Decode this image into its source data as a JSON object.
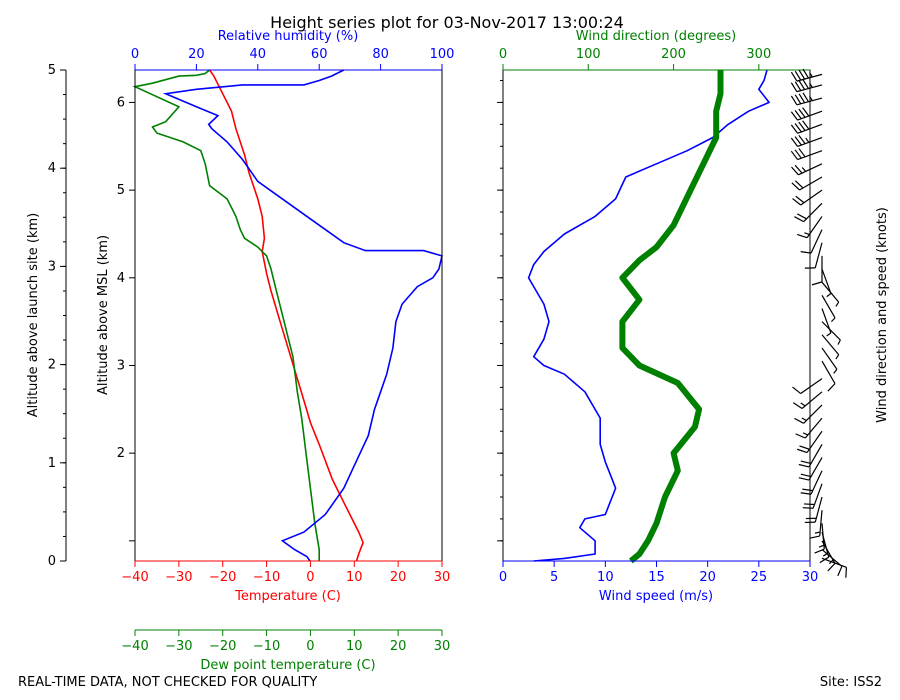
{
  "title": "Height series plot for 03-Nov-2017 13:00:24",
  "footer": {
    "left": "REAL-TIME DATA, NOT CHECKED FOR QUALITY",
    "right": "Site: ISS2"
  },
  "colors": {
    "temperature": "#ff0000",
    "dewpoint": "#008000",
    "humidity": "#0000ff",
    "wind_speed": "#0000ff",
    "wind_direction": "#008000",
    "axis": "#000000"
  },
  "chart_data": [
    {
      "type": "line",
      "panel": "thermodynamic",
      "left_axis": {
        "label": "Altitude above launch site (km)",
        "range": [
          0,
          5
        ],
        "ticks": [
          0,
          1,
          2,
          3,
          4,
          5
        ]
      },
      "y_axis": {
        "label": "Altitude above MSL (km)",
        "range": [
          0.77,
          6.37
        ],
        "ticks": [
          1,
          2,
          3,
          4,
          5,
          6
        ],
        "tick_labels": [
          "",
          "2",
          "3",
          "4",
          "5",
          "6"
        ]
      },
      "x_bottom": {
        "label": "Temperature (C)",
        "range": [
          -40,
          30
        ],
        "ticks": [
          -40,
          -30,
          -20,
          -10,
          0,
          10,
          20,
          30
        ]
      },
      "x_bottom2": {
        "label": "Dew point temperature (C)",
        "range": [
          -40,
          30
        ],
        "ticks": [
          -40,
          -30,
          -20,
          -10,
          0,
          10,
          20,
          30
        ]
      },
      "x_top": {
        "label": "Relative humidity (%)",
        "range": [
          0,
          100
        ],
        "ticks": [
          0,
          20,
          40,
          60,
          80,
          100
        ]
      },
      "series": [
        {
          "name": "Temperature",
          "axis": "temperature",
          "color": "#ff0000",
          "points": [
            [
              10.5,
              0.77
            ],
            [
              11,
              0.85
            ],
            [
              12,
              0.98
            ],
            [
              11,
              1.1
            ],
            [
              8,
              1.4
            ],
            [
              5,
              1.7
            ],
            [
              2,
              2.1
            ],
            [
              0,
              2.35
            ],
            [
              -1.5,
              2.6
            ],
            [
              -3,
              2.85
            ],
            [
              -4.5,
              3.1
            ],
            [
              -6,
              3.35
            ],
            [
              -7.5,
              3.6
            ],
            [
              -9,
              3.85
            ],
            [
              -10,
              4.05
            ],
            [
              -11,
              4.3
            ],
            [
              -10.5,
              4.45
            ],
            [
              -11,
              4.7
            ],
            [
              -12,
              4.9
            ],
            [
              -14,
              5.2
            ],
            [
              -15,
              5.4
            ],
            [
              -17,
              5.7
            ],
            [
              -18,
              5.9
            ],
            [
              -20,
              6.1
            ],
            [
              -22,
              6.3
            ],
            [
              -23,
              6.37
            ]
          ]
        },
        {
          "name": "Dew point",
          "axis": "dewpoint",
          "color": "#008000",
          "points": [
            [
              2,
              0.77
            ],
            [
              2,
              0.9
            ],
            [
              1,
              1.2
            ],
            [
              0,
              1.6
            ],
            [
              -1,
              2.0
            ],
            [
              -2,
              2.4
            ],
            [
              -3,
              2.7
            ],
            [
              -3.5,
              2.9
            ],
            [
              -4,
              3.1
            ],
            [
              -5,
              3.3
            ],
            [
              -6,
              3.5
            ],
            [
              -7,
              3.7
            ],
            [
              -8,
              3.9
            ],
            [
              -9,
              4.1
            ],
            [
              -10,
              4.25
            ],
            [
              -12,
              4.35
            ],
            [
              -15,
              4.45
            ],
            [
              -16,
              4.55
            ],
            [
              -17,
              4.7
            ],
            [
              -19,
              4.9
            ],
            [
              -23,
              5.05
            ],
            [
              -24,
              5.3
            ],
            [
              -25,
              5.45
            ],
            [
              -29,
              5.55
            ],
            [
              -35,
              5.65
            ],
            [
              -36,
              5.72
            ],
            [
              -33,
              5.78
            ],
            [
              -30,
              5.95
            ],
            [
              -40,
              6.18
            ],
            [
              -36,
              6.22
            ],
            [
              -30,
              6.3
            ],
            [
              -26,
              6.31
            ],
            [
              -24,
              6.33
            ],
            [
              -23,
              6.37
            ]
          ]
        },
        {
          "name": "Relative humidity",
          "axis": "humidity",
          "color": "#0000ff",
          "points": [
            [
              57,
              0.77
            ],
            [
              56,
              0.82
            ],
            [
              52,
              0.9
            ],
            [
              48,
              1.0
            ],
            [
              55,
              1.1
            ],
            [
              62,
              1.3
            ],
            [
              68,
              1.6
            ],
            [
              72,
              1.9
            ],
            [
              76,
              2.2
            ],
            [
              78,
              2.5
            ],
            [
              80,
              2.7
            ],
            [
              82,
              2.9
            ],
            [
              84,
              3.2
            ],
            [
              85,
              3.5
            ],
            [
              87,
              3.7
            ],
            [
              92,
              3.9
            ],
            [
              97,
              4.0
            ],
            [
              99,
              4.1
            ],
            [
              100,
              4.25
            ],
            [
              94,
              4.31
            ],
            [
              75,
              4.31
            ],
            [
              68,
              4.4
            ],
            [
              60,
              4.6
            ],
            [
              50,
              4.85
            ],
            [
              40,
              5.1
            ],
            [
              35,
              5.35
            ],
            [
              30,
              5.55
            ],
            [
              25,
              5.7
            ],
            [
              24,
              5.75
            ],
            [
              27,
              5.85
            ],
            [
              20,
              5.95
            ],
            [
              10,
              6.1
            ],
            [
              20,
              6.15
            ],
            [
              35,
              6.2
            ],
            [
              55,
              6.2
            ],
            [
              60,
              6.25
            ],
            [
              64,
              6.3
            ],
            [
              68,
              6.37
            ]
          ]
        }
      ]
    },
    {
      "type": "line",
      "panel": "wind",
      "y_range": [
        0.77,
        6.37
      ],
      "x_bottom": {
        "label": "Wind speed (m/s)",
        "range": [
          0,
          30
        ],
        "ticks": [
          0,
          5,
          10,
          15,
          20,
          25,
          30
        ]
      },
      "x_top": {
        "label": "Wind direction (degrees)",
        "range": [
          0,
          360
        ],
        "ticks": [
          0,
          100,
          200,
          300
        ]
      },
      "right_label": "Wind direction and speed (knots)",
      "series": [
        {
          "name": "Wind speed",
          "axis": "speed",
          "color": "#0000ff",
          "points": [
            [
              3,
              0.77
            ],
            [
              6,
              0.8
            ],
            [
              9,
              0.85
            ],
            [
              9,
              1.0
            ],
            [
              7.5,
              1.15
            ],
            [
              8,
              1.25
            ],
            [
              10,
              1.3
            ],
            [
              11,
              1.6
            ],
            [
              10.5,
              1.75
            ],
            [
              10,
              1.9
            ],
            [
              9.5,
              2.1
            ],
            [
              9.5,
              2.4
            ],
            [
              8,
              2.7
            ],
            [
              6,
              2.9
            ],
            [
              4,
              3.0
            ],
            [
              3,
              3.1
            ],
            [
              4,
              3.3
            ],
            [
              4.5,
              3.5
            ],
            [
              4,
              3.7
            ],
            [
              3,
              3.9
            ],
            [
              2.5,
              4.0
            ],
            [
              3,
              4.15
            ],
            [
              4,
              4.3
            ],
            [
              6,
              4.5
            ],
            [
              9,
              4.7
            ],
            [
              11,
              4.9
            ],
            [
              12,
              5.15
            ],
            [
              15,
              5.3
            ],
            [
              18,
              5.45
            ],
            [
              20.5,
              5.6
            ],
            [
              22,
              5.75
            ],
            [
              24,
              5.9
            ],
            [
              26,
              6.0
            ],
            [
              25,
              6.15
            ],
            [
              25.5,
              6.25
            ],
            [
              25.8,
              6.37
            ]
          ]
        },
        {
          "name": "Wind direction",
          "axis": "direction",
          "color": "#008000",
          "points": [
            [
              150,
              0.77
            ],
            [
              160,
              0.85
            ],
            [
              170,
              1.0
            ],
            [
              180,
              1.2
            ],
            [
              190,
              1.5
            ],
            [
              205,
              1.8
            ],
            [
              200,
              2.0
            ],
            [
              225,
              2.3
            ],
            [
              230,
              2.5
            ],
            [
              205,
              2.8
            ],
            [
              160,
              3.0
            ],
            [
              140,
              3.2
            ],
            [
              140,
              3.5
            ],
            [
              160,
              3.75
            ],
            [
              140,
              4.0
            ],
            [
              160,
              4.2
            ],
            [
              180,
              4.35
            ],
            [
              200,
              4.6
            ],
            [
              220,
              5.0
            ],
            [
              235,
              5.3
            ],
            [
              250,
              5.6
            ],
            [
              250,
              5.9
            ],
            [
              255,
              6.1
            ],
            [
              255,
              6.37
            ]
          ]
        }
      ],
      "barbs": [
        [
          0.8,
          110,
          12
        ],
        [
          0.9,
          130,
          14
        ],
        [
          1.0,
          150,
          16
        ],
        [
          1.1,
          165,
          17
        ],
        [
          1.2,
          175,
          18
        ],
        [
          1.35,
          185,
          18
        ],
        [
          1.5,
          195,
          20
        ],
        [
          1.65,
          200,
          22
        ],
        [
          1.8,
          205,
          24
        ],
        [
          1.95,
          210,
          24
        ],
        [
          2.1,
          210,
          22
        ],
        [
          2.25,
          215,
          20
        ],
        [
          2.4,
          220,
          18
        ],
        [
          2.55,
          225,
          18
        ],
        [
          2.7,
          230,
          16
        ],
        [
          2.85,
          235,
          14
        ],
        [
          3.05,
          150,
          10
        ],
        [
          3.2,
          145,
          8
        ],
        [
          3.35,
          140,
          8
        ],
        [
          3.5,
          135,
          8
        ],
        [
          3.65,
          160,
          6
        ],
        [
          3.8,
          150,
          6
        ],
        [
          3.95,
          140,
          6
        ],
        [
          4.1,
          160,
          8
        ],
        [
          4.25,
          180,
          10
        ],
        [
          4.4,
          195,
          12
        ],
        [
          4.55,
          205,
          14
        ],
        [
          4.7,
          215,
          16
        ],
        [
          4.85,
          225,
          20
        ],
        [
          5.0,
          235,
          22
        ],
        [
          5.15,
          240,
          24
        ],
        [
          5.3,
          245,
          26
        ],
        [
          5.45,
          250,
          30
        ],
        [
          5.6,
          250,
          36
        ],
        [
          5.75,
          250,
          40
        ],
        [
          5.9,
          250,
          44
        ],
        [
          6.05,
          255,
          46
        ],
        [
          6.2,
          255,
          48
        ],
        [
          6.32,
          255,
          48
        ]
      ]
    }
  ]
}
